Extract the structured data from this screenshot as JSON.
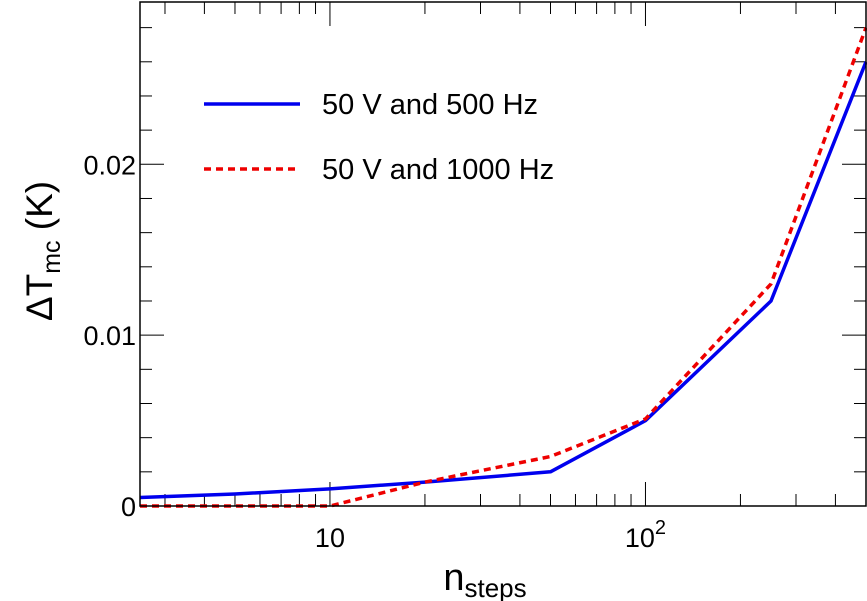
{
  "chart_data": {
    "type": "line",
    "xscale": "log",
    "xlim": [
      2.5,
      500
    ],
    "ylim": [
      0,
      0.0295
    ],
    "xlabel": {
      "main": "n",
      "sub": "steps"
    },
    "ylabel": {
      "main": "ΔT",
      "sub": "mc",
      "unit": " (K)"
    },
    "x_ticks": [
      {
        "value": 10,
        "base": "10",
        "exp": ""
      },
      {
        "value": 100,
        "base": "10",
        "exp": "2"
      }
    ],
    "y_ticks": [
      {
        "value": 0,
        "label": "0"
      },
      {
        "value": 0.01,
        "label": "0.01"
      },
      {
        "value": 0.02,
        "label": "0.02"
      }
    ],
    "legend_position": "top-left",
    "series": [
      {
        "name": "50 V and 500 Hz",
        "color": "#0000ee",
        "style": "solid",
        "x": [
          2.5,
          5,
          10,
          20,
          50,
          100,
          250,
          500
        ],
        "y": [
          0.0005,
          0.0007,
          0.001,
          0.0014,
          0.002,
          0.005,
          0.012,
          0.026
        ]
      },
      {
        "name": "50 V and 1000 Hz",
        "color": "#ee0000",
        "style": "dashed",
        "x": [
          2.5,
          5,
          10,
          20,
          50,
          100,
          250,
          500
        ],
        "y": [
          0,
          0,
          0,
          0.0014,
          0.0029,
          0.0051,
          0.013,
          0.028
        ]
      }
    ]
  }
}
